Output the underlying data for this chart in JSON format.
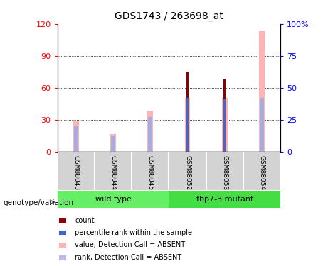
{
  "title": "GDS1743 / 263698_at",
  "samples": [
    "GSM88043",
    "GSM88044",
    "GSM88045",
    "GSM88052",
    "GSM88053",
    "GSM88054"
  ],
  "count_values": [
    0,
    0,
    0,
    75,
    68,
    0
  ],
  "percentile_rank_values": [
    0,
    0,
    0,
    42,
    41,
    0
  ],
  "absent_value_values": [
    24,
    14,
    32,
    42,
    42,
    95
  ],
  "absent_rank_values": [
    20,
    12,
    27,
    0,
    0,
    42
  ],
  "ylim_left": [
    0,
    120
  ],
  "yticks_left": [
    0,
    30,
    60,
    90,
    120
  ],
  "ytick_labels_left": [
    "0",
    "30",
    "60",
    "90",
    "120"
  ],
  "ytick_labels_right": [
    "0",
    "25",
    "50",
    "75",
    "100%"
  ],
  "color_count": "#8B0000",
  "color_percentile": "#4466cc",
  "color_absent_value": "#ffb3b3",
  "color_absent_rank": "#bbbbee",
  "color_absent_rank_bar": "#aaaadd",
  "legend_items": [
    {
      "label": "count",
      "color": "#8B0000"
    },
    {
      "label": "percentile rank within the sample",
      "color": "#4466cc"
    },
    {
      "label": "value, Detection Call = ABSENT",
      "color": "#ffb3b3"
    },
    {
      "label": "rank, Detection Call = ABSENT",
      "color": "#bbbbee"
    }
  ],
  "genotype_label": "genotype/variation",
  "wild_type_color": "#66ee66",
  "mutant_color": "#44dd44",
  "background_color": "#ffffff"
}
